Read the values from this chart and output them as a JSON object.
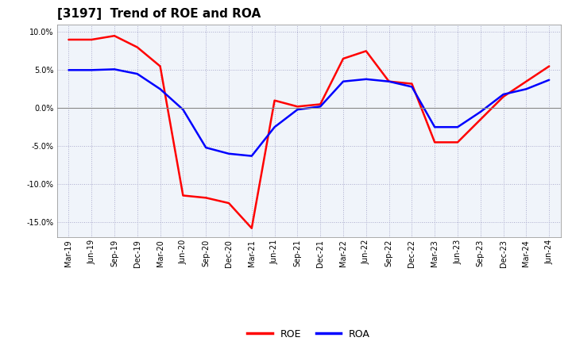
{
  "title": "[3197]  Trend of ROE and ROA",
  "x_labels": [
    "Mar-19",
    "Jun-19",
    "Sep-19",
    "Dec-19",
    "Mar-20",
    "Jun-20",
    "Sep-20",
    "Dec-20",
    "Mar-21",
    "Jun-21",
    "Sep-21",
    "Dec-21",
    "Mar-22",
    "Jun-22",
    "Sep-22",
    "Dec-22",
    "Mar-23",
    "Jun-23",
    "Sep-23",
    "Dec-23",
    "Mar-24",
    "Jun-24"
  ],
  "roe": [
    9.0,
    9.0,
    9.5,
    8.0,
    5.5,
    -11.5,
    -11.8,
    -12.5,
    -15.8,
    1.0,
    0.2,
    0.5,
    6.5,
    7.5,
    3.5,
    3.2,
    -4.5,
    -4.5,
    -1.5,
    1.5,
    3.5,
    5.5
  ],
  "roa": [
    5.0,
    5.0,
    5.1,
    4.5,
    2.5,
    -0.2,
    -5.2,
    -6.0,
    -6.3,
    -2.5,
    -0.2,
    0.2,
    3.5,
    3.8,
    3.5,
    2.8,
    -2.5,
    -2.5,
    -0.5,
    1.8,
    2.5,
    3.7
  ],
  "roe_color": "#FF0000",
  "roa_color": "#0000FF",
  "ylim": [
    -17,
    11
  ],
  "yticks": [
    -15.0,
    -10.0,
    -5.0,
    0.0,
    5.0,
    10.0
  ],
  "background_color": "#ffffff",
  "plot_bg_color": "#f0f4fa",
  "grid_color": "#aaaacc",
  "zero_line_color": "#888888",
  "title_fontsize": 11,
  "tick_fontsize": 7,
  "legend_labels": [
    "ROE",
    "ROA"
  ],
  "legend_fontsize": 9
}
